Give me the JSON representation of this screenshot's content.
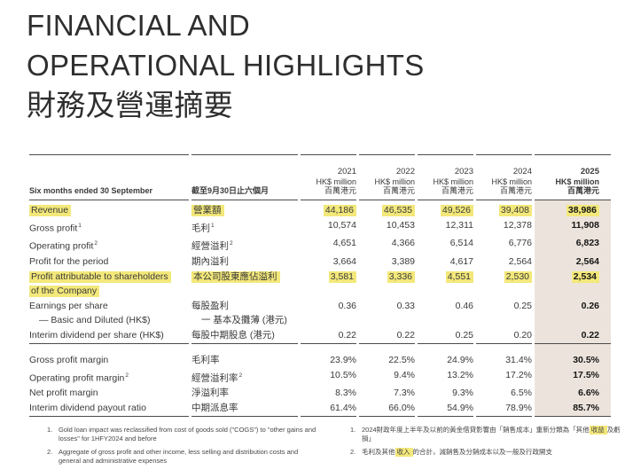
{
  "title": {
    "line1": "FINANCIAL AND",
    "line2": "OPERATIONAL HIGHLIGHTS",
    "line3": "財務及營運摘要"
  },
  "colors": {
    "highlight_yellow": "#f3e87a",
    "band_beige": "#ece4dc",
    "rule": "#4c4c4c",
    "text": "#3a3a3a"
  },
  "table": {
    "period_label_en": "Six months ended 30 September",
    "period_label_zh": "截至9月30日止六個月",
    "unit_en": "HK$ million",
    "unit_zh": "百萬港元",
    "years": [
      "2021",
      "2022",
      "2023",
      "2024",
      "2025"
    ],
    "sections": [
      {
        "rows": [
          {
            "en": "Revenue",
            "zh": "營業額",
            "values": [
              "44,186",
              "46,535",
              "49,526",
              "39,408",
              "38,986"
            ],
            "highlight": true
          },
          {
            "en": "Gross profit",
            "sup_en": "1",
            "zh": "毛利",
            "sup_zh": "1",
            "values": [
              "10,574",
              "10,453",
              "12,311",
              "12,378",
              "11,908"
            ]
          },
          {
            "en": "Operating profit",
            "sup_en": "2",
            "zh": "經營溢利",
            "sup_zh": "2",
            "values": [
              "4,651",
              "4,366",
              "6,514",
              "6,776",
              "6,823"
            ]
          },
          {
            "en": "Profit for the period",
            "zh": "期內溢利",
            "values": [
              "3,664",
              "3,389",
              "4,617",
              "2,564",
              "2,564"
            ]
          },
          {
            "en": "Profit attributable to shareholders",
            "en2": "of the Company",
            "zh": "本公司股東應佔溢利",
            "values": [
              "3,581",
              "3,336",
              "4,551",
              "2,530",
              "2,534"
            ],
            "highlight": true
          },
          {
            "en": "Earnings per share",
            "en2": "— Basic and Diluted (HK$)",
            "en2_indent": true,
            "zh": "每股盈利",
            "zh2": "一 基本及攤薄 (港元)",
            "zh2_indent": true,
            "values": [
              "0.36",
              "0.33",
              "0.46",
              "0.25",
              "0.26"
            ]
          },
          {
            "en": "Interim dividend per share (HK$)",
            "zh": "每股中期股息 (港元)",
            "values": [
              "0.22",
              "0.22",
              "0.25",
              "0.20",
              "0.22"
            ]
          }
        ]
      },
      {
        "rows": [
          {
            "en": "Gross profit margin",
            "zh": "毛利率",
            "values": [
              "23.9%",
              "22.5%",
              "24.9%",
              "31.4%",
              "30.5%"
            ]
          },
          {
            "en": "Operating profit margin",
            "sup_en": "2",
            "zh": "經營溢利率",
            "sup_zh": "2",
            "values": [
              "10.5%",
              "9.4%",
              "13.2%",
              "17.2%",
              "17.5%"
            ]
          },
          {
            "en": "Net profit margin",
            "zh": "淨溢利率",
            "values": [
              "8.3%",
              "7.3%",
              "9.3%",
              "6.5%",
              "6.6%"
            ]
          },
          {
            "en": "Interim dividend payout ratio",
            "zh": "中期派息率",
            "values": [
              "61.4%",
              "66.0%",
              "54.9%",
              "78.9%",
              "85.7%"
            ]
          }
        ]
      }
    ]
  },
  "footnotes": {
    "en": [
      {
        "num": "1.",
        "text": "Gold loan impact was reclassified from cost of goods sold (\"COGS\") to \"other gains and losses\" for 1HFY2024 and before"
      },
      {
        "num": "2.",
        "text": "Aggregate of gross profit and other income, less selling and distribution costs and general and administrative expenses"
      }
    ],
    "zh": [
      {
        "num": "1.",
        "pre": "2024財政年度上半年及以前的黃金借貸影響由「銷售成本」重新分類為「其他",
        "hl": "收益",
        "post": "及虧損」"
      },
      {
        "num": "2.",
        "pre": "毛利及其他",
        "hl": "收入",
        "post": "的合計，減銷售及分銷成本以及一般及行政開支"
      }
    ]
  }
}
